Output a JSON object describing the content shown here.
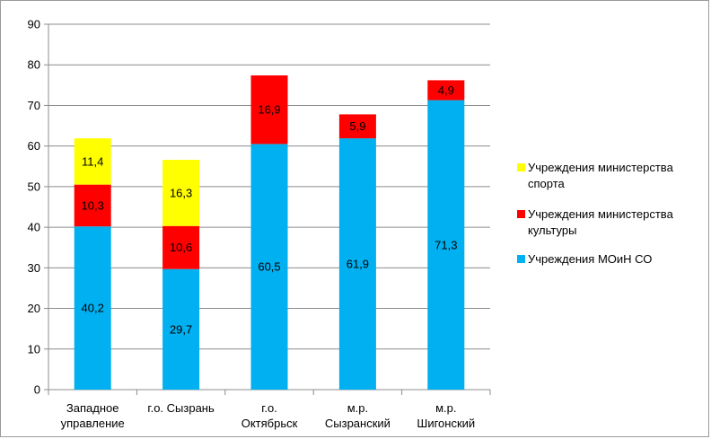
{
  "chart_data": {
    "type": "bar",
    "stacked": true,
    "categories": [
      [
        "Западное",
        "управление"
      ],
      [
        "г.о. Сызрань"
      ],
      [
        "г.о.",
        "Октябрьск"
      ],
      [
        "м.р.",
        "Сызранский"
      ],
      [
        "м.р.",
        "Шигонский"
      ]
    ],
    "series": [
      {
        "name": "Учреждения  МОиН СО",
        "color": "#00b0f0",
        "values": [
          40.2,
          29.7,
          60.5,
          61.9,
          71.3
        ],
        "labels": [
          "40,2",
          "29,7",
          "60,5",
          "61,9",
          "71,3"
        ]
      },
      {
        "name": "Учреждения министерства культуры",
        "color": "#ff0000",
        "values": [
          10.3,
          10.6,
          16.9,
          5.9,
          4.9
        ],
        "labels": [
          "10,3",
          "10,6",
          "16,9",
          "5,9",
          "4,9"
        ]
      },
      {
        "name": "Учреждения министерства спорта",
        "color": "#ffff00",
        "values": [
          11.4,
          16.3,
          0,
          0,
          0
        ],
        "labels": [
          "11,4",
          "16,3",
          "",
          "",
          ""
        ]
      }
    ],
    "legend_order": [
      2,
      1,
      0
    ],
    "legend_lines": [
      [
        "Учреждения министерства",
        "спорта"
      ],
      [
        "Учреждения министерства",
        "культуры"
      ],
      [
        "Учреждения  МОиН СО"
      ]
    ],
    "yticks": [
      "0",
      "10",
      "20",
      "30",
      "40",
      "50",
      "60",
      "70",
      "80",
      "90"
    ],
    "ylim": [
      0,
      90
    ],
    "legend_position": "right",
    "title": "",
    "xlabel": "",
    "ylabel": ""
  }
}
